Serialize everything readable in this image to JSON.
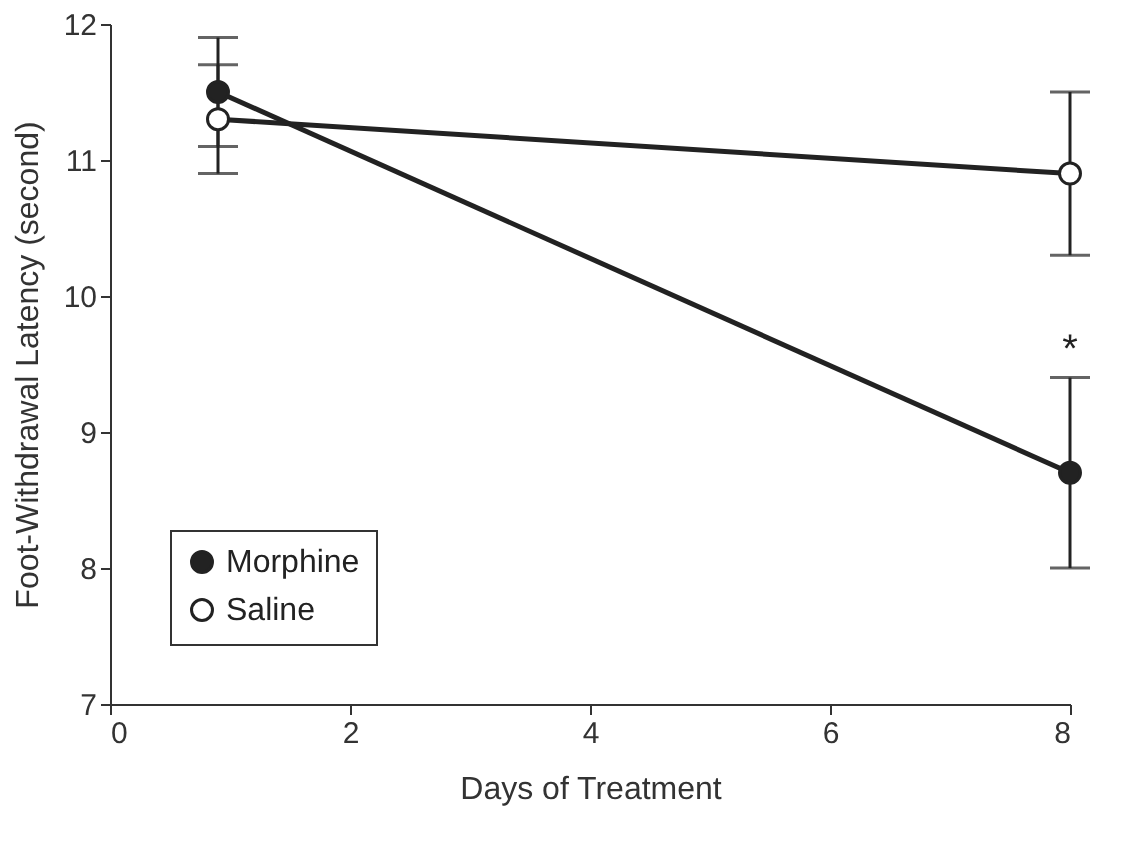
{
  "chart_data": {
    "type": "line",
    "xlabel": "Days of Treatment",
    "ylabel": "Foot-Withdrawal Latency (second)",
    "x": [
      0.9,
      8
    ],
    "series": [
      {
        "name": "Morphine",
        "color": "#222222",
        "values": [
          11.5,
          8.7
        ],
        "errors": [
          0.4,
          0.7
        ]
      },
      {
        "name": "Saline",
        "color": "#222222",
        "values": [
          11.3,
          10.9
        ],
        "errors": [
          0.4,
          0.6
        ]
      }
    ],
    "xlim": [
      0,
      8
    ],
    "xticks": [
      0,
      2,
      4,
      6,
      8
    ],
    "ylim": [
      7,
      12
    ],
    "yticks": [
      7,
      8,
      9,
      10,
      11,
      12
    ],
    "annotations": [
      "*"
    ],
    "marker": "circle",
    "legend": "bottom left",
    "grid": false,
    "line_style": "solid"
  }
}
